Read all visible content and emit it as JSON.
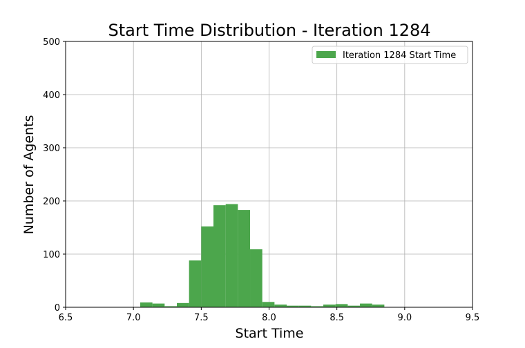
{
  "chart_data": {
    "type": "bar",
    "title": "Start Time Distribution - Iteration 1284",
    "xlabel": "Start Time",
    "ylabel": "Number of Agents",
    "xlim": [
      6.5,
      9.5
    ],
    "ylim": [
      0,
      500
    ],
    "x_ticks": [
      "6.5",
      "7.0",
      "7.5",
      "8.0",
      "8.5",
      "9.0",
      "9.5"
    ],
    "y_ticks": [
      "0",
      "100",
      "200",
      "300",
      "400",
      "500"
    ],
    "grid": true,
    "legend_position": "top-right",
    "bar_color": "#4ca64c",
    "series": [
      {
        "name": "Iteration 1284 Start Time",
        "bins": [
          {
            "start": 7.05,
            "end": 7.14,
            "value": 9
          },
          {
            "start": 7.14,
            "end": 7.23,
            "value": 7
          },
          {
            "start": 7.23,
            "end": 7.32,
            "value": 2
          },
          {
            "start": 7.32,
            "end": 7.41,
            "value": 8
          },
          {
            "start": 7.41,
            "end": 7.5,
            "value": 88
          },
          {
            "start": 7.5,
            "end": 7.59,
            "value": 152
          },
          {
            "start": 7.59,
            "end": 7.68,
            "value": 192
          },
          {
            "start": 7.68,
            "end": 7.77,
            "value": 194
          },
          {
            "start": 7.77,
            "end": 7.86,
            "value": 183
          },
          {
            "start": 7.86,
            "end": 7.95,
            "value": 109
          },
          {
            "start": 7.95,
            "end": 8.04,
            "value": 10
          },
          {
            "start": 8.04,
            "end": 8.13,
            "value": 5
          },
          {
            "start": 8.13,
            "end": 8.22,
            "value": 3
          },
          {
            "start": 8.22,
            "end": 8.31,
            "value": 3
          },
          {
            "start": 8.31,
            "end": 8.4,
            "value": 2
          },
          {
            "start": 8.4,
            "end": 8.49,
            "value": 5
          },
          {
            "start": 8.49,
            "end": 8.58,
            "value": 6
          },
          {
            "start": 8.58,
            "end": 8.67,
            "value": 3
          },
          {
            "start": 8.67,
            "end": 8.76,
            "value": 7
          },
          {
            "start": 8.76,
            "end": 8.85,
            "value": 5
          }
        ]
      }
    ]
  }
}
